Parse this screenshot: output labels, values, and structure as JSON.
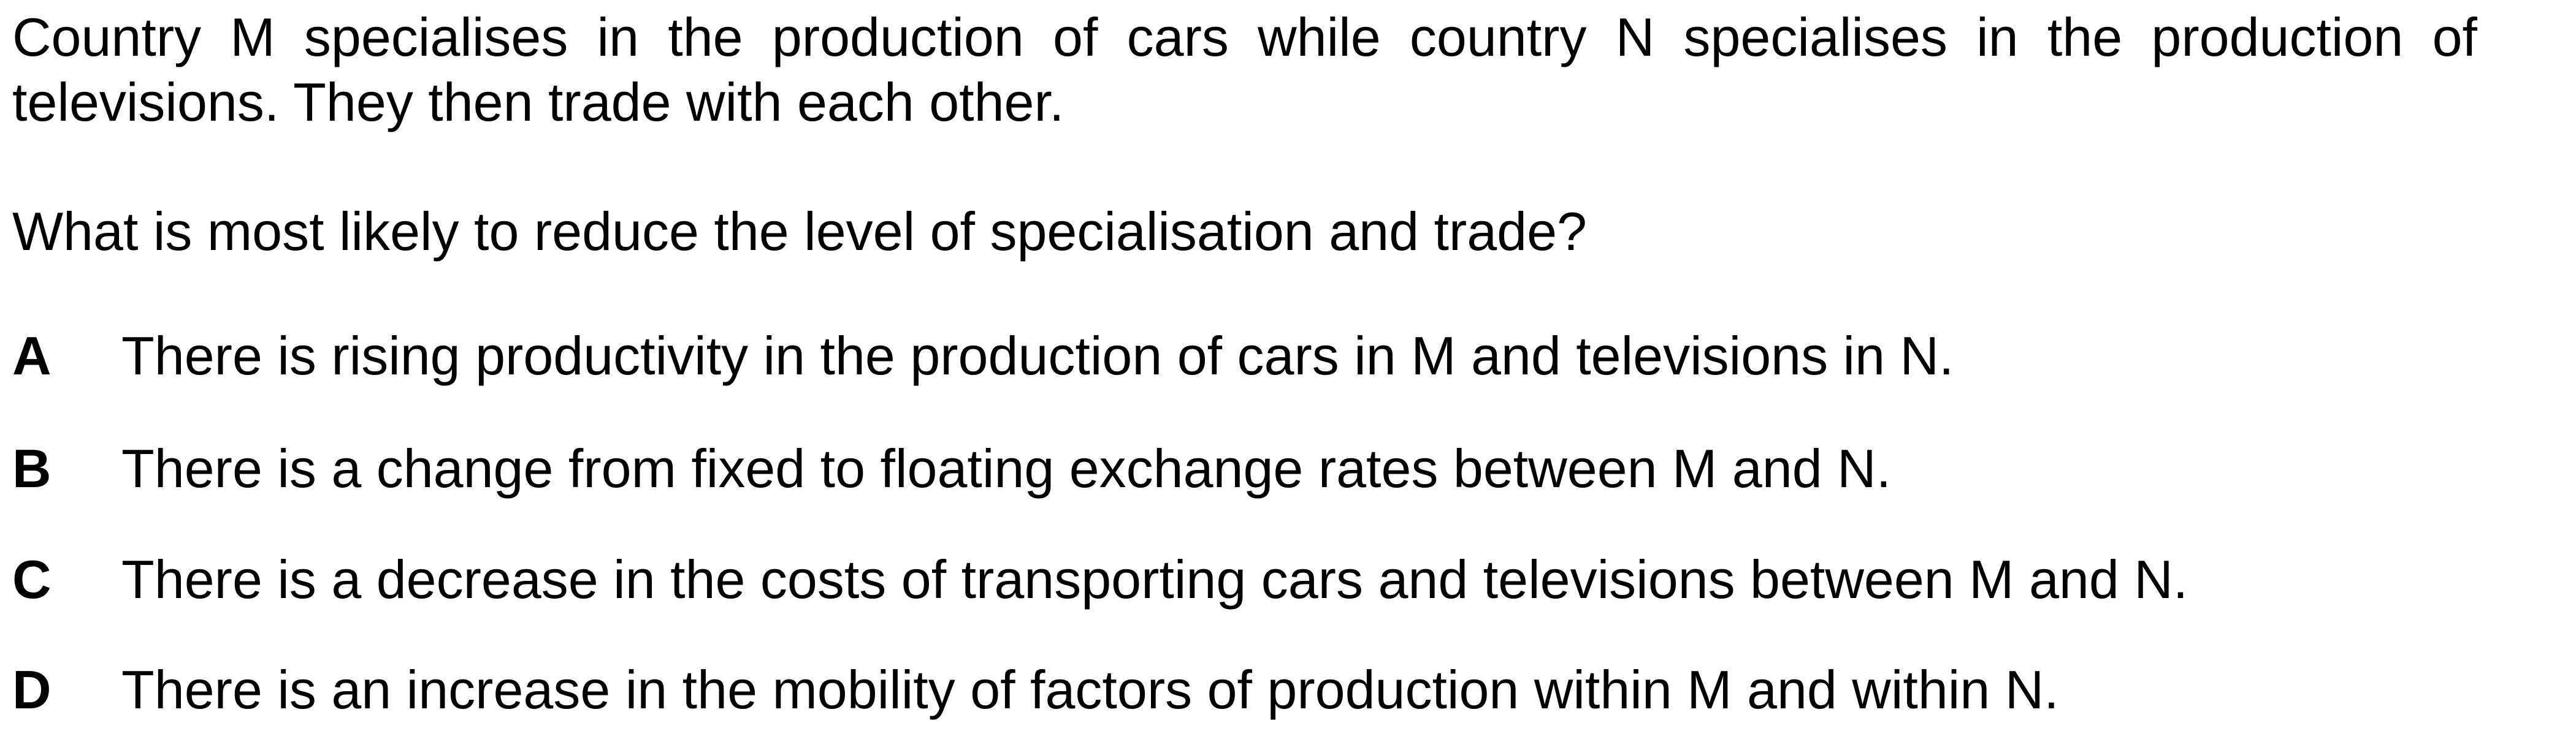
{
  "stem": "Country M specialises in the production of cars while country N specialises in the production of televisions. They then trade with each other.",
  "question": "What is most likely to reduce the level of specialisation and trade?",
  "options": [
    {
      "letter": "A",
      "text": "There is rising productivity in the production of cars in M and televisions in N."
    },
    {
      "letter": "B",
      "text": "There is a change from fixed to floating exchange rates between M and N."
    },
    {
      "letter": "C",
      "text": "There is a decrease in the costs of transporting cars and televisions between M and N."
    },
    {
      "letter": "D",
      "text": "There is an increase in the mobility of factors of production within M and within N."
    }
  ]
}
